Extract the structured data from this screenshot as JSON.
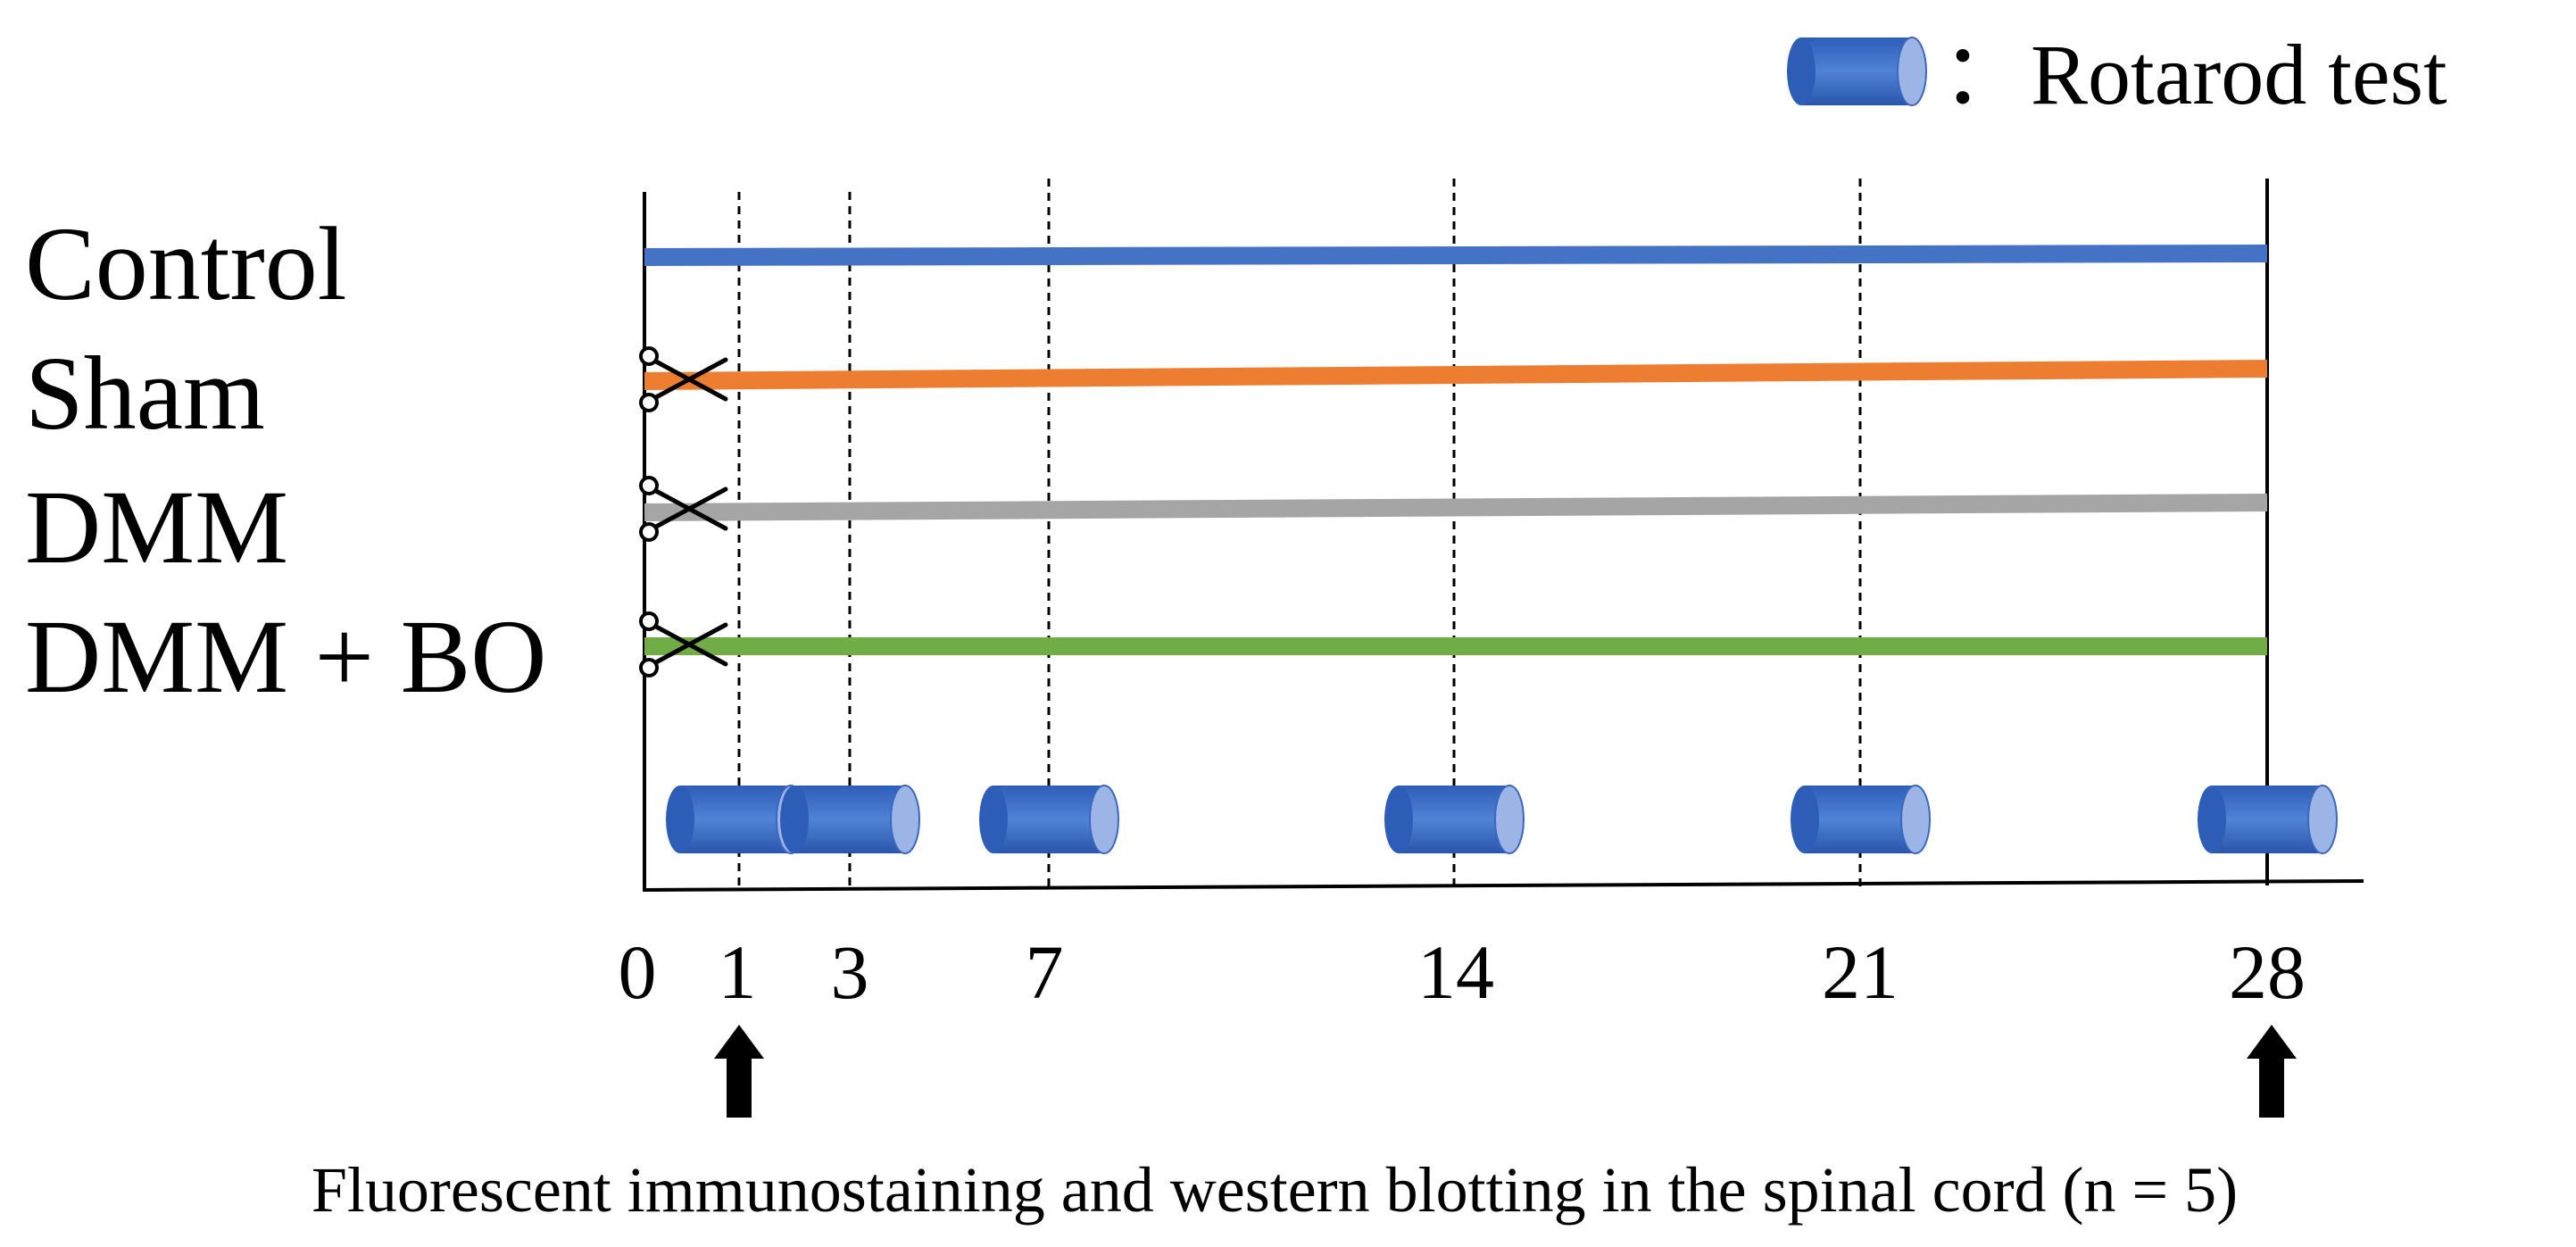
{
  "legend": {
    "icon": "cylinder-icon",
    "separator": "：",
    "label": "Rotarod test",
    "color": "#4472C4"
  },
  "groups": [
    {
      "label": "Control",
      "color": "#4472C4",
      "surgery": false
    },
    {
      "label": "Sham",
      "color": "#ED7D31",
      "surgery": true
    },
    {
      "label": "DMM",
      "color": "#A5A5A5",
      "surgery": true
    },
    {
      "label": "DMM + BO",
      "color": "#70AD47",
      "surgery": true
    }
  ],
  "time_points": [
    "0",
    "1",
    "3",
    "7",
    "14",
    "21",
    "28"
  ],
  "rotarod_days": [
    1,
    3,
    7,
    14,
    21,
    28
  ],
  "sampling_days": [
    1,
    28
  ],
  "caption": "Fluorescent immunostaining and western blotting in the spinal cord (n = 5)"
}
